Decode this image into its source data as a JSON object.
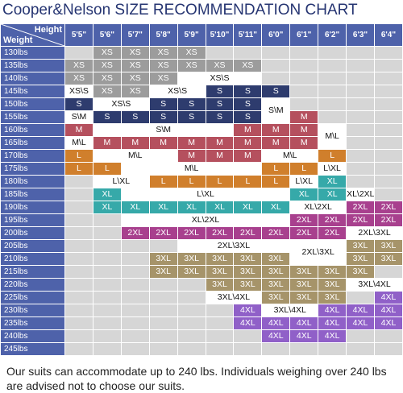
{
  "header": {
    "title": "Cooper&Nelson SIZE RECOMMENDATION CHART"
  },
  "grid": {
    "corner_top": "Height",
    "corner_left": "Weight",
    "heights": [
      "5'5\"",
      "5'6\"",
      "5'7\"",
      "5'8\"",
      "5'9\"",
      "5'10\"",
      "5'11\"",
      "6'0\"",
      "6'1\"",
      "6'2\"",
      "6'3\"",
      "6'4\""
    ],
    "rows": [
      {
        "weight": "130lbs",
        "cells": [
          null,
          {
            "text": "XS",
            "color": "#9c9c9c"
          },
          {
            "text": "XS",
            "color": "#9c9c9c"
          },
          {
            "text": "XS",
            "color": "#9c9c9c"
          },
          {
            "text": "XS",
            "color": "#9c9c9c"
          },
          null,
          null,
          null,
          null,
          null,
          null,
          null
        ]
      },
      {
        "weight": "135lbs",
        "cells": [
          {
            "text": "XS",
            "color": "#9c9c9c"
          },
          {
            "text": "XS",
            "color": "#9c9c9c"
          },
          {
            "text": "XS",
            "color": "#9c9c9c"
          },
          {
            "text": "XS",
            "color": "#9c9c9c"
          },
          {
            "text": "XS",
            "color": "#9c9c9c"
          },
          {
            "text": "XS",
            "color": "#9c9c9c"
          },
          {
            "text": "XS",
            "color": "#9c9c9c"
          },
          null,
          null,
          null,
          null,
          null
        ]
      },
      {
        "weight": "140lbs",
        "cells": [
          {
            "text": "XS",
            "color": "#9c9c9c"
          },
          {
            "text": "XS",
            "color": "#9c9c9c"
          },
          {
            "text": "XS",
            "color": "#9c9c9c"
          },
          {
            "text": "XS",
            "color": "#9c9c9c"
          },
          {
            "text": "XS\\S",
            "color": "#ffffff",
            "colspan": 3
          },
          null,
          null,
          null,
          null,
          null
        ]
      },
      {
        "weight": "145lbs",
        "cells": [
          {
            "text": "XS\\S",
            "color": "#ffffff"
          },
          {
            "text": "XS",
            "color": "#9c9c9c"
          },
          {
            "text": "XS",
            "color": "#9c9c9c"
          },
          {
            "text": "XS\\S",
            "color": "#ffffff",
            "colspan": 2
          },
          {
            "text": "S",
            "color": "#2e3c6e"
          },
          {
            "text": "S",
            "color": "#2e3c6e"
          },
          {
            "text": "S",
            "color": "#2e3c6e"
          },
          null,
          null,
          null,
          null
        ]
      },
      {
        "weight": "150lbs",
        "cells": [
          {
            "text": "S",
            "color": "#2e3c6e"
          },
          {
            "text": "XS\\S",
            "color": "#ffffff",
            "colspan": 2
          },
          {
            "text": "S",
            "color": "#2e3c6e"
          },
          {
            "text": "S",
            "color": "#2e3c6e"
          },
          {
            "text": "S",
            "color": "#2e3c6e"
          },
          {
            "text": "S",
            "color": "#2e3c6e"
          },
          {
            "text": "S\\M",
            "color": "#ffffff",
            "rowspan": 2
          },
          null,
          null,
          null,
          null
        ]
      },
      {
        "weight": "155lbs",
        "cells": [
          {
            "text": "S\\M",
            "color": "#ffffff"
          },
          {
            "text": "S",
            "color": "#2e3c6e"
          },
          {
            "text": "S",
            "color": "#2e3c6e"
          },
          {
            "text": "S",
            "color": "#2e3c6e"
          },
          {
            "text": "S",
            "color": "#2e3c6e"
          },
          {
            "text": "S",
            "color": "#2e3c6e"
          },
          {
            "text": "S",
            "color": "#2e3c6e"
          },
          {
            "text": "M",
            "color": "#b5505e"
          },
          null,
          null,
          null
        ]
      },
      {
        "weight": "160lbs",
        "cells": [
          {
            "text": "M",
            "color": "#b5505e"
          },
          {
            "text": "S\\M",
            "color": "#ffffff",
            "colspan": 5
          },
          {
            "text": "M",
            "color": "#b5505e"
          },
          {
            "text": "M",
            "color": "#b5505e"
          },
          {
            "text": "M",
            "color": "#b5505e"
          },
          {
            "text": "M\\L",
            "color": "#ffffff",
            "rowspan": 2
          },
          null,
          null
        ]
      },
      {
        "weight": "165lbs",
        "cells": [
          {
            "text": "M\\L",
            "color": "#ffffff"
          },
          {
            "text": "M",
            "color": "#b5505e"
          },
          {
            "text": "M",
            "color": "#b5505e"
          },
          {
            "text": "M",
            "color": "#b5505e"
          },
          {
            "text": "M",
            "color": "#b5505e"
          },
          {
            "text": "M",
            "color": "#b5505e"
          },
          {
            "text": "M",
            "color": "#b5505e"
          },
          {
            "text": "M",
            "color": "#b5505e"
          },
          {
            "text": "M",
            "color": "#b5505e"
          },
          null,
          null
        ]
      },
      {
        "weight": "170lbs",
        "cells": [
          {
            "text": "L",
            "color": "#d07f2c"
          },
          {
            "text": "M\\L",
            "color": "#ffffff",
            "colspan": 3
          },
          {
            "text": "M",
            "color": "#b5505e"
          },
          {
            "text": "M",
            "color": "#b5505e"
          },
          {
            "text": "M",
            "color": "#b5505e"
          },
          {
            "text": "M\\L",
            "color": "#ffffff",
            "colspan": 2
          },
          {
            "text": "L",
            "color": "#d07f2c"
          },
          null,
          null
        ]
      },
      {
        "weight": "175lbs",
        "cells": [
          {
            "text": "L",
            "color": "#d07f2c"
          },
          {
            "text": "L",
            "color": "#d07f2c"
          },
          {
            "text": "M\\L",
            "color": "#ffffff",
            "colspan": 5
          },
          {
            "text": "L",
            "color": "#d07f2c"
          },
          {
            "text": "L",
            "color": "#d07f2c"
          },
          {
            "text": "L\\XL",
            "color": "#ffffff"
          },
          null,
          null
        ]
      },
      {
        "weight": "180lbs",
        "cells": [
          null,
          {
            "text": "L\\XL",
            "color": "#ffffff",
            "colspan": 2
          },
          {
            "text": "L",
            "color": "#d07f2c"
          },
          {
            "text": "L",
            "color": "#d07f2c"
          },
          {
            "text": "L",
            "color": "#d07f2c"
          },
          {
            "text": "L",
            "color": "#d07f2c"
          },
          {
            "text": "L",
            "color": "#d07f2c"
          },
          {
            "text": "L\\XL",
            "color": "#ffffff"
          },
          {
            "text": "XL",
            "color": "#36a9a9"
          },
          null,
          null
        ]
      },
      {
        "weight": "185lbs",
        "cells": [
          null,
          {
            "text": "XL",
            "color": "#36a9a9"
          },
          {
            "text": "L\\XL",
            "color": "#ffffff",
            "colspan": 6
          },
          {
            "text": "XL",
            "color": "#36a9a9"
          },
          {
            "text": "XL",
            "color": "#36a9a9"
          },
          {
            "text": "XL\\2XL",
            "color": "#ffffff"
          },
          null
        ]
      },
      {
        "weight": "190lbs",
        "cells": [
          null,
          {
            "text": "XL",
            "color": "#36a9a9"
          },
          {
            "text": "XL",
            "color": "#36a9a9"
          },
          {
            "text": "XL",
            "color": "#36a9a9"
          },
          {
            "text": "XL",
            "color": "#36a9a9"
          },
          {
            "text": "XL",
            "color": "#36a9a9"
          },
          {
            "text": "XL",
            "color": "#36a9a9"
          },
          {
            "text": "XL",
            "color": "#36a9a9"
          },
          {
            "text": "XL\\2XL",
            "color": "#ffffff",
            "colspan": 2
          },
          {
            "text": "2XL",
            "color": "#a8408e"
          },
          {
            "text": "2XL",
            "color": "#a8408e"
          }
        ]
      },
      {
        "weight": "195lbs",
        "cells": [
          null,
          null,
          {
            "text": "XL\\2XL",
            "color": "#ffffff",
            "colspan": 6
          },
          {
            "text": "2XL",
            "color": "#a8408e"
          },
          {
            "text": "2XL",
            "color": "#a8408e"
          },
          {
            "text": "2XL",
            "color": "#a8408e"
          },
          {
            "text": "2XL",
            "color": "#a8408e"
          }
        ]
      },
      {
        "weight": "200lbs",
        "cells": [
          null,
          null,
          {
            "text": "2XL",
            "color": "#a8408e"
          },
          {
            "text": "2XL",
            "color": "#a8408e"
          },
          {
            "text": "2XL",
            "color": "#a8408e"
          },
          {
            "text": "2XL",
            "color": "#a8408e"
          },
          {
            "text": "2XL",
            "color": "#a8408e"
          },
          {
            "text": "2XL",
            "color": "#a8408e"
          },
          {
            "text": "2XL",
            "color": "#a8408e"
          },
          {
            "text": "2XL",
            "color": "#a8408e"
          },
          {
            "text": "2XL\\3XL",
            "color": "#ffffff",
            "colspan": 2
          }
        ]
      },
      {
        "weight": "205lbs",
        "cells": [
          null,
          null,
          null,
          null,
          {
            "text": "2XL\\3XL",
            "color": "#ffffff",
            "colspan": 4
          },
          {
            "text": "2XL\\3XL",
            "color": "#ffffff",
            "colspan": 2,
            "rowspan": 2
          },
          {
            "text": "3XL",
            "color": "#a6946a"
          },
          {
            "text": "3XL",
            "color": "#a6946a"
          }
        ]
      },
      {
        "weight": "210lbs",
        "cells": [
          null,
          null,
          null,
          {
            "text": "3XL",
            "color": "#a6946a"
          },
          {
            "text": "3XL",
            "color": "#a6946a"
          },
          {
            "text": "3XL",
            "color": "#a6946a"
          },
          {
            "text": "3XL",
            "color": "#a6946a"
          },
          {
            "text": "3XL",
            "color": "#a6946a"
          },
          {
            "text": "3XL",
            "color": "#a6946a"
          },
          {
            "text": "3XL",
            "color": "#a6946a"
          }
        ]
      },
      {
        "weight": "215lbs",
        "cells": [
          null,
          null,
          null,
          {
            "text": "3XL",
            "color": "#a6946a"
          },
          {
            "text": "3XL",
            "color": "#a6946a"
          },
          {
            "text": "3XL",
            "color": "#a6946a"
          },
          {
            "text": "3XL",
            "color": "#a6946a"
          },
          {
            "text": "3XL",
            "color": "#a6946a"
          },
          {
            "text": "3XL",
            "color": "#a6946a"
          },
          {
            "text": "3XL",
            "color": "#a6946a"
          },
          {
            "text": "3XL",
            "color": "#a6946a"
          },
          null
        ]
      },
      {
        "weight": "220lbs",
        "cells": [
          null,
          null,
          null,
          null,
          null,
          {
            "text": "3XL",
            "color": "#a6946a"
          },
          {
            "text": "3XL",
            "color": "#a6946a"
          },
          {
            "text": "3XL",
            "color": "#a6946a"
          },
          {
            "text": "3XL",
            "color": "#a6946a"
          },
          {
            "text": "3XL",
            "color": "#a6946a"
          },
          {
            "text": "3XL\\4XL",
            "color": "#ffffff",
            "colspan": 2
          }
        ]
      },
      {
        "weight": "225lbs",
        "cells": [
          null,
          null,
          null,
          null,
          null,
          {
            "text": "3XL\\4XL",
            "color": "#ffffff",
            "colspan": 2
          },
          {
            "text": "3XL",
            "color": "#a6946a"
          },
          {
            "text": "3XL",
            "color": "#a6946a"
          },
          {
            "text": "3XL",
            "color": "#a6946a"
          },
          null,
          {
            "text": "4XL",
            "color": "#9060c8"
          }
        ]
      },
      {
        "weight": "230lbs",
        "cells": [
          null,
          null,
          null,
          null,
          null,
          null,
          {
            "text": "4XL",
            "color": "#9060c8"
          },
          {
            "text": "3XL\\4XL",
            "color": "#ffffff",
            "colspan": 2
          },
          {
            "text": "4XL",
            "color": "#9060c8"
          },
          {
            "text": "4XL",
            "color": "#9060c8"
          },
          {
            "text": "4XL",
            "color": "#9060c8"
          }
        ]
      },
      {
        "weight": "235lbs",
        "cells": [
          null,
          null,
          null,
          null,
          null,
          null,
          {
            "text": "4XL",
            "color": "#9060c8"
          },
          {
            "text": "4XL",
            "color": "#9060c8"
          },
          {
            "text": "4XL",
            "color": "#9060c8"
          },
          {
            "text": "4XL",
            "color": "#9060c8"
          },
          {
            "text": "4XL",
            "color": "#9060c8"
          },
          {
            "text": "4XL",
            "color": "#9060c8"
          }
        ]
      },
      {
        "weight": "240lbs",
        "cells": [
          null,
          null,
          null,
          null,
          null,
          null,
          null,
          {
            "text": "4XL",
            "color": "#9060c8"
          },
          {
            "text": "4XL",
            "color": "#9060c8"
          },
          {
            "text": "4XL",
            "color": "#9060c8"
          },
          null,
          null
        ]
      },
      {
        "weight": "245lbs",
        "cells": [
          null,
          null,
          null,
          null,
          null,
          null,
          null,
          null,
          null,
          null,
          null,
          null
        ]
      }
    ]
  },
  "footer": {
    "lines": [
      "Our suits can accommodate up to 240 lbs. Individuals weighing over 240 lbs",
      "are advised not to choose our suits."
    ]
  }
}
